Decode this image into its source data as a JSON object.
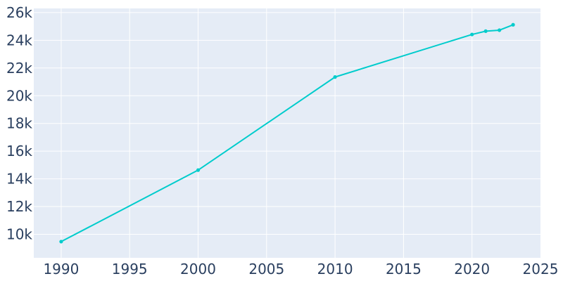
{
  "chart_data": {
    "type": "line",
    "title": "",
    "xlabel": "",
    "ylabel": "",
    "x": [
      1990,
      2000,
      2010,
      2020,
      2021,
      2022,
      2023
    ],
    "series": [
      {
        "values": [
          9470,
          14630,
          21350,
          24420,
          24660,
          24730,
          25120
        ]
      }
    ],
    "xlim": [
      1988,
      2025
    ],
    "ylim": [
      8300,
      26300
    ],
    "x_ticks": [
      1990,
      1995,
      2000,
      2005,
      2010,
      2015,
      2020,
      2025
    ],
    "x_tick_labels": [
      "1990",
      "1995",
      "2000",
      "2005",
      "2010",
      "2015",
      "2020",
      "2025"
    ],
    "y_ticks": [
      10000,
      12000,
      14000,
      16000,
      18000,
      20000,
      22000,
      24000,
      26000
    ],
    "y_tick_labels": [
      "10k",
      "12k",
      "14k",
      "16k",
      "18k",
      "20k",
      "22k",
      "24k",
      "26k"
    ],
    "grid": true,
    "legend": "none",
    "colors": {
      "line": "#00cccc",
      "plot_background": "#e5ecf6",
      "grid": "#ffffff",
      "tick_text": "#2a3f5f"
    }
  }
}
